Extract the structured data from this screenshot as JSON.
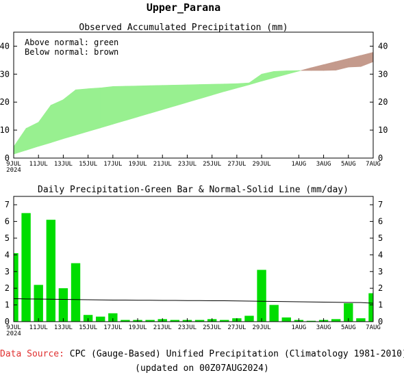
{
  "title": "Upper_Parana",
  "colors": {
    "above_normal": "#98f090",
    "below_normal": "#c49a8c",
    "bar": "#00dd00",
    "normal_line": "#000000",
    "source_label": "#e03030"
  },
  "chart_data": [
    {
      "type": "area",
      "title": "Observed Accumulated Precipitation (mm)",
      "legend_text": [
        "Above normal: green",
        "Below normal: brown"
      ],
      "x_tick_labels": [
        "9JUL",
        "11JUL",
        "13JUL",
        "15JUL",
        "17JUL",
        "19JUL",
        "21JUL",
        "23JUL",
        "25JUL",
        "27JUL",
        "29JUL",
        "1AUG",
        "3AUG",
        "5AUG",
        "7AUG"
      ],
      "x_year_label": "2024",
      "x": [
        "9JUL",
        "10JUL",
        "11JUL",
        "12JUL",
        "13JUL",
        "14JUL",
        "15JUL",
        "16JUL",
        "17JUL",
        "18JUL",
        "19JUL",
        "20JUL",
        "21JUL",
        "22JUL",
        "23JUL",
        "24JUL",
        "25JUL",
        "26JUL",
        "27JUL",
        "28JUL",
        "29JUL",
        "30JUL",
        "31JUL",
        "1AUG",
        "2AUG",
        "3AUG",
        "4AUG",
        "5AUG",
        "6AUG",
        "7AUG"
      ],
      "series": [
        {
          "name": "Observed",
          "values": [
            4.1,
            10.6,
            12.8,
            18.9,
            20.9,
            24.4,
            24.8,
            25.1,
            25.6,
            25.7,
            25.8,
            25.9,
            26.0,
            26.1,
            26.2,
            26.3,
            26.4,
            26.5,
            26.6,
            26.9,
            30.0,
            31.0,
            31.2,
            31.3,
            31.3,
            31.3,
            31.4,
            32.5,
            32.7,
            34.4
          ]
        },
        {
          "name": "Normal",
          "values": [
            1.4,
            2.8,
            4.2,
            5.5,
            6.9,
            8.2,
            9.5,
            10.8,
            12.1,
            13.4,
            14.7,
            16.0,
            17.3,
            18.6,
            19.9,
            21.2,
            22.5,
            23.8,
            25.0,
            26.2,
            27.5,
            28.7,
            29.9,
            31.1,
            32.3,
            33.4,
            34.5,
            35.6,
            36.7,
            37.8
          ]
        }
      ],
      "ylim": [
        0,
        45
      ],
      "y_ticks": [
        0,
        10,
        20,
        30,
        40
      ]
    },
    {
      "type": "bar",
      "title": "Daily Precipitation-Green Bar & Normal-Solid Line (mm/day)",
      "x_tick_labels": [
        "9JUL",
        "11JUL",
        "13JUL",
        "15JUL",
        "17JUL",
        "19JUL",
        "21JUL",
        "23JUL",
        "25JUL",
        "27JUL",
        "29JUL",
        "1AUG",
        "3AUG",
        "5AUG",
        "7AUG"
      ],
      "x_year_label": "2024",
      "categories": [
        "9JUL",
        "10JUL",
        "11JUL",
        "12JUL",
        "13JUL",
        "14JUL",
        "15JUL",
        "16JUL",
        "17JUL",
        "18JUL",
        "19JUL",
        "20JUL",
        "21JUL",
        "22JUL",
        "23JUL",
        "24JUL",
        "25JUL",
        "26JUL",
        "27JUL",
        "28JUL",
        "29JUL",
        "30JUL",
        "31JUL",
        "1AUG",
        "2AUG",
        "3AUG",
        "4AUG",
        "5AUG",
        "6AUG",
        "7AUG"
      ],
      "values": [
        4.1,
        6.5,
        2.2,
        6.1,
        2.0,
        3.5,
        0.4,
        0.3,
        0.5,
        0.1,
        0.1,
        0.1,
        0.15,
        0.1,
        0.1,
        0.1,
        0.15,
        0.1,
        0.2,
        0.35,
        3.1,
        1.0,
        0.25,
        0.1,
        0.05,
        0.1,
        0.15,
        1.1,
        0.2,
        1.7
      ],
      "normal": [
        1.38,
        1.36,
        1.35,
        1.34,
        1.33,
        1.32,
        1.31,
        1.3,
        1.29,
        1.29,
        1.28,
        1.28,
        1.27,
        1.27,
        1.26,
        1.26,
        1.25,
        1.25,
        1.24,
        1.23,
        1.22,
        1.21,
        1.2,
        1.19,
        1.18,
        1.17,
        1.16,
        1.15,
        1.14,
        1.1
      ],
      "ylim": [
        0,
        7.5
      ],
      "y_ticks": [
        0,
        1,
        2,
        3,
        4,
        5,
        6,
        7
      ]
    }
  ],
  "footer": {
    "source_label": "Data Source:",
    "source_text": "CPC (Gauge-Based) Unified Precipitation (Climatology 1981-2010)",
    "updated_text": "(updated on 00Z07AUG2024)"
  }
}
